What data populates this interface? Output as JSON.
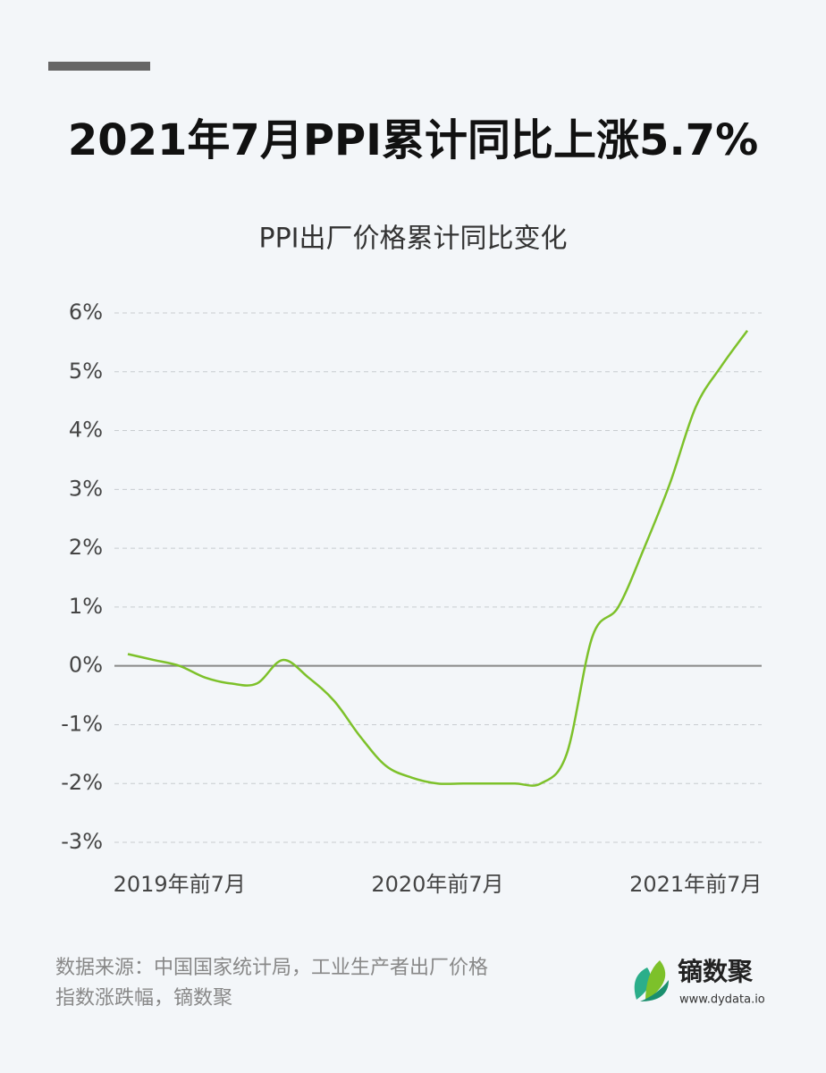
{
  "header": {
    "title": "2021年7月PPI累计同比上涨5.7%"
  },
  "chart_data": {
    "type": "line",
    "title": "PPI出厂价格累计同比变化",
    "categories": [
      null,
      null,
      "2019年前7月",
      null,
      null,
      null,
      null,
      null,
      null,
      null,
      null,
      null,
      "2020年前7月",
      null,
      null,
      null,
      null,
      null,
      null,
      null,
      null,
      null,
      "2021年前7月",
      null,
      null
    ],
    "values": [
      0.2,
      0.1,
      0.0,
      -0.2,
      -0.3,
      -0.3,
      0.1,
      -0.2,
      -0.6,
      -1.2,
      -1.7,
      -1.9,
      -2.0,
      -2.0,
      -2.0,
      -2.0,
      -2.0,
      -1.5,
      0.5,
      1.0,
      2.0,
      3.1,
      4.4,
      5.1,
      5.7
    ],
    "color": "#7dc12a",
    "ylim": [
      -3,
      6
    ],
    "yticks": [
      {
        "value": -3,
        "label": "-3%"
      },
      {
        "value": -2,
        "label": "-2%"
      },
      {
        "value": -1,
        "label": "-1%"
      },
      {
        "value": 0,
        "label": "0%"
      },
      {
        "value": 1,
        "label": "1%"
      },
      {
        "value": 2,
        "label": "2%"
      },
      {
        "value": 3,
        "label": "3%"
      },
      {
        "value": 4,
        "label": "4%"
      },
      {
        "value": 5,
        "label": "5%"
      },
      {
        "value": 6,
        "label": "6%"
      }
    ],
    "grid": true
  },
  "footer": {
    "source": [
      "数据来源：中国国家统计局，工业生产者出厂价格",
      "指数涨跌幅，镝数聚"
    ],
    "brand": "镝数聚",
    "url": "www.dydata.io"
  }
}
